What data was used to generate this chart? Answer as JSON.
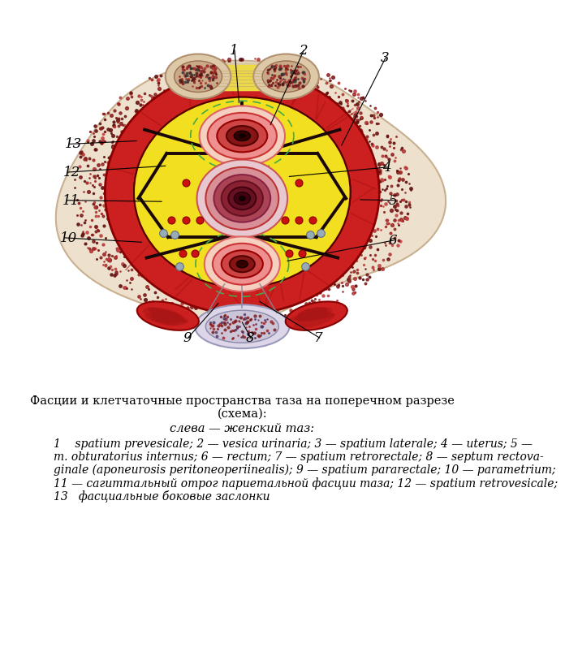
{
  "bg_color": "#ffffff",
  "title_line1": "Фасции и клетчаточные пространства таза на поперечном разрезе",
  "title_line2": "(схема):",
  "subtitle": "слева — женский таз:",
  "legend_line1": "1    spatium prevesicale; 2 — vesica urinaria; 3 — spatium laterale; 4 — uterus; 5 —",
  "legend_line2": "m. obturatorius internus; 6 — rectum; 7 — spatium retrorectale; 8 — septum rectova-",
  "legend_line3": "ginale (aponeurosis peritoneoperiinealis); 9 — spatium pararectale; 10 — parametrium;",
  "legend_line4": "11 — сагиттальный отрог париетальной фасции таза; 12 — spatium retrovesicale;",
  "legend_line5": "13   фасциальные боковые заслонки"
}
